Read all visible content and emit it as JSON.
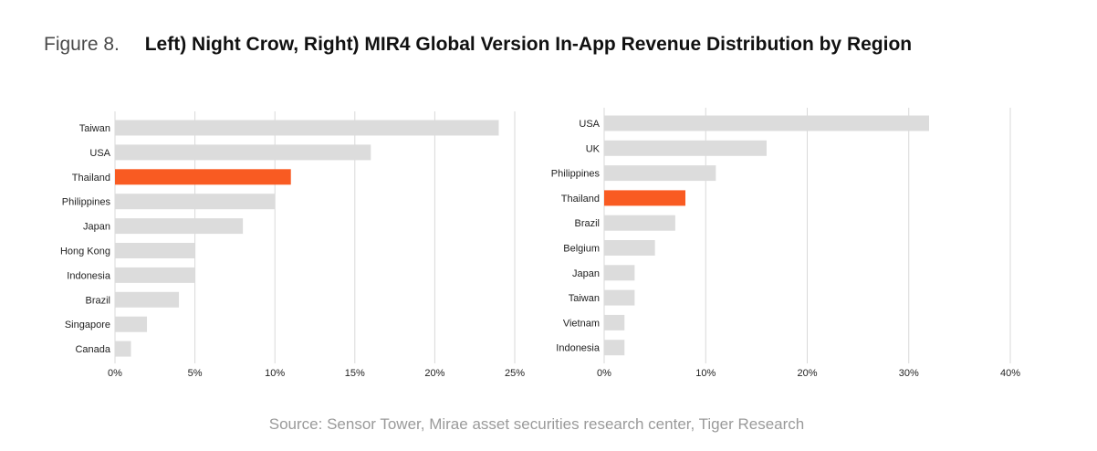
{
  "figure": {
    "number": "Figure 8.",
    "title": "Left) Night Crow, Right) MIR4 Global Version In-App Revenue Distribution by Region"
  },
  "colors": {
    "highlight": "#f95b22",
    "bar": "#dcdcdc",
    "grid": "#d9d9d9",
    "text": "#222222"
  },
  "chart_data": [
    {
      "type": "bar",
      "orientation": "horizontal",
      "title": "Night Crow",
      "categories": [
        "Taiwan",
        "USA",
        "Thailand",
        "Philippines",
        "Japan",
        "Hong Kong",
        "Indonesia",
        "Brazil",
        "Singapore",
        "Canada"
      ],
      "values": [
        24,
        16,
        11,
        10,
        8,
        5,
        5,
        4,
        2,
        1
      ],
      "highlight": "Thailand",
      "xlim": [
        0,
        25
      ],
      "ticks": [
        0,
        5,
        10,
        15,
        20,
        25
      ],
      "tick_labels": [
        "0%",
        "5%",
        "10%",
        "15%",
        "20%",
        "25%"
      ],
      "unit": "%",
      "grid": true
    },
    {
      "type": "bar",
      "orientation": "horizontal",
      "title": "MIR4",
      "categories": [
        "USA",
        "UK",
        "Philippines",
        "Thailand",
        "Brazil",
        "Belgium",
        "Japan",
        "Taiwan",
        "Vietnam",
        "Indonesia"
      ],
      "values": [
        32,
        16,
        11,
        8,
        7,
        5,
        3,
        3,
        2,
        2
      ],
      "highlight": "Thailand",
      "xlim": [
        0,
        40
      ],
      "ticks": [
        0,
        10,
        20,
        30,
        40
      ],
      "tick_labels": [
        "0%",
        "10%",
        "20%",
        "30%",
        "40%"
      ],
      "unit": "%",
      "grid": true
    }
  ],
  "source": "Source: Sensor Tower, Mirae asset securities research center, Tiger Research"
}
